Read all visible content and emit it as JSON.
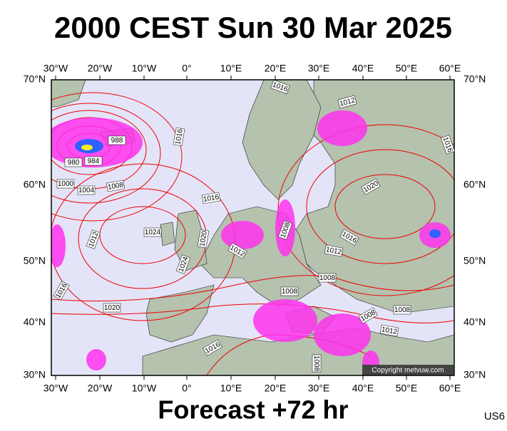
{
  "header": {
    "title": "2000 CEST Sun 30 Mar 2025"
  },
  "longitude_labels": [
    "30°W",
    "20°W",
    "10°W",
    "0°",
    "10°E",
    "20°E",
    "30°E",
    "40°E",
    "50°E",
    "60°E"
  ],
  "latitude_labels": [
    "70°N",
    "60°N",
    "50°N",
    "40°N",
    "30°N"
  ],
  "isobar_labels": [
    "1016",
    "1012",
    "988",
    "980",
    "984",
    "1016",
    "1016",
    "1000",
    "1004",
    "1008",
    "1016",
    "1020",
    "1024",
    "1012",
    "1020",
    "1008",
    "1016",
    "1012",
    "1012",
    "1024",
    "1008",
    "1008",
    "1016",
    "1020",
    "1008",
    "1008",
    "1012",
    "1016",
    "1008"
  ],
  "copyright": "Copyright metvuw.com",
  "footer": {
    "forecast": "Forecast +72 hr",
    "code": "US6"
  }
}
